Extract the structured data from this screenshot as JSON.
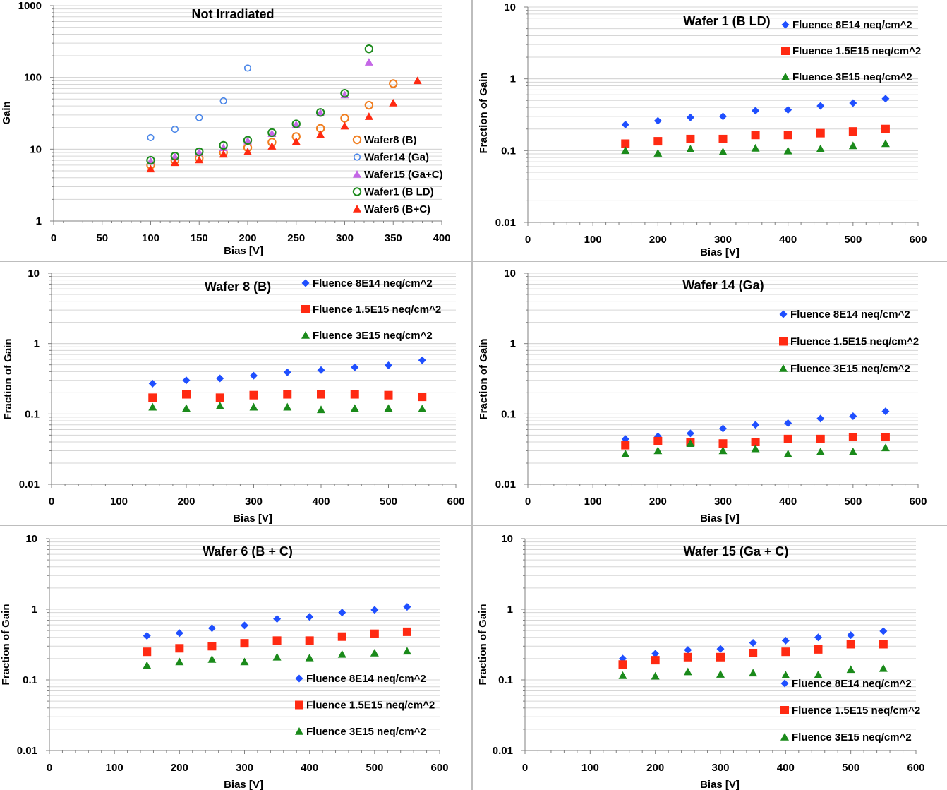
{
  "colors": {
    "fluence_8e14": "#1f4fff",
    "fluence_1_5e15": "#ff2a12",
    "fluence_3e15": "#1a8a1a",
    "wafer8": "#f07d1e",
    "wafer14": "#4a86e8",
    "wafer15": "#c467e6",
    "wafer1": "#1c8a1c",
    "wafer6": "#ff2a12"
  },
  "chart_data": [
    {
      "id": "not-irradiated",
      "type": "scatter",
      "title": "Not Irradiated",
      "xlabel": "Bias [V]",
      "ylabel": "Gain",
      "xlim": [
        0,
        400
      ],
      "ylim": [
        1,
        1000
      ],
      "yscale": "log",
      "xticks": [
        0,
        50,
        100,
        150,
        200,
        250,
        300,
        350,
        400
      ],
      "yticks": [
        1,
        10,
        100,
        1000
      ],
      "grid": true,
      "legend_position": "bottom-right",
      "series": [
        {
          "name": "Wafer8 (B)",
          "marker": "circle-open",
          "color": "#f07d1e",
          "x": [
            100,
            125,
            150,
            175,
            200,
            225,
            250,
            275,
            300,
            325,
            350
          ],
          "y": [
            6.0,
            7.0,
            7.5,
            9.0,
            10.5,
            12.5,
            15.0,
            19.5,
            27.0,
            41.0,
            82.0
          ]
        },
        {
          "name": "Wafer14 (Ga)",
          "marker": "circle-open-small",
          "color": "#4a86e8",
          "x": [
            100,
            125,
            150,
            175,
            200
          ],
          "y": [
            14.5,
            19.0,
            27.5,
            47.0,
            135.0
          ]
        },
        {
          "name": "Wafer15 (Ga+C)",
          "marker": "triangle",
          "color": "#c467e6",
          "x": [
            100,
            125,
            150,
            175,
            200,
            225,
            250,
            275,
            300,
            325
          ],
          "y": [
            6.8,
            7.8,
            9.0,
            10.5,
            13.0,
            16.5,
            22.0,
            32.0,
            57.0,
            163.0
          ]
        },
        {
          "name": "Wafer1 (B LD)",
          "marker": "circle-open",
          "color": "#1c8a1c",
          "x": [
            100,
            125,
            150,
            175,
            200,
            225,
            250,
            275,
            300,
            325
          ],
          "y": [
            7.0,
            8.0,
            9.2,
            11.3,
            13.3,
            17.0,
            22.5,
            32.5,
            60.0,
            250.0
          ]
        },
        {
          "name": "Wafer6 (B+C)",
          "marker": "triangle",
          "color": "#ff2a12",
          "x": [
            100,
            125,
            150,
            175,
            200,
            225,
            250,
            275,
            300,
            325,
            350,
            375
          ],
          "y": [
            5.3,
            6.5,
            7.1,
            8.5,
            9.2,
            11.0,
            12.8,
            16.0,
            21.0,
            28.5,
            44.0,
            90.0
          ]
        }
      ]
    },
    {
      "id": "wafer1",
      "type": "scatter",
      "title": "Wafer 1 (B LD)",
      "xlabel": "Bias [V]",
      "ylabel": "Fraction of Gain",
      "xlim": [
        0,
        600
      ],
      "ylim": [
        0.01,
        10
      ],
      "yscale": "log",
      "xticks": [
        0,
        100,
        200,
        300,
        400,
        500,
        600
      ],
      "yticks": [
        0.01,
        0.1,
        1,
        10
      ],
      "grid": true,
      "legend_position": "top-right",
      "series": [
        {
          "name": "Fluence 8E14 neq/cm^2",
          "marker": "diamond",
          "color": "#1f4fff",
          "x": [
            150,
            200,
            250,
            300,
            350,
            400,
            450,
            500,
            550
          ],
          "y": [
            0.23,
            0.26,
            0.29,
            0.3,
            0.36,
            0.37,
            0.42,
            0.46,
            0.53
          ]
        },
        {
          "name": "Fluence 1.5E15 neq/cm^2",
          "marker": "square",
          "color": "#ff2a12",
          "x": [
            150,
            200,
            250,
            300,
            350,
            400,
            450,
            500,
            550
          ],
          "y": [
            0.125,
            0.135,
            0.145,
            0.145,
            0.165,
            0.165,
            0.175,
            0.185,
            0.2
          ]
        },
        {
          "name": "Fluence 3E15 neq/cm^2",
          "marker": "triangle",
          "color": "#1a8a1a",
          "x": [
            150,
            200,
            250,
            300,
            350,
            400,
            450,
            500,
            550
          ],
          "y": [
            0.1,
            0.092,
            0.105,
            0.096,
            0.108,
            0.099,
            0.106,
            0.117,
            0.125
          ]
        }
      ]
    },
    {
      "id": "wafer8",
      "type": "scatter",
      "title": "Wafer 8 (B)",
      "xlabel": "Bias [V]",
      "ylabel": "Fraction of Gain",
      "xlim": [
        0,
        600
      ],
      "ylim": [
        0.01,
        10
      ],
      "yscale": "log",
      "xticks": [
        0,
        100,
        200,
        300,
        400,
        500,
        600
      ],
      "yticks": [
        0.01,
        0.1,
        1,
        10
      ],
      "grid": true,
      "legend_position": "top-right",
      "series": [
        {
          "name": "Fluence 8E14 neq/cm^2",
          "marker": "diamond",
          "color": "#1f4fff",
          "x": [
            150,
            200,
            250,
            300,
            350,
            400,
            450,
            500,
            550
          ],
          "y": [
            0.27,
            0.3,
            0.32,
            0.35,
            0.39,
            0.42,
            0.46,
            0.49,
            0.58
          ]
        },
        {
          "name": "Fluence 1.5E15 neq/cm^2",
          "marker": "square",
          "color": "#ff2a12",
          "x": [
            150,
            200,
            250,
            300,
            350,
            400,
            450,
            500,
            550
          ],
          "y": [
            0.17,
            0.19,
            0.17,
            0.185,
            0.19,
            0.19,
            0.19,
            0.185,
            0.175
          ]
        },
        {
          "name": "Fluence 3E15 neq/cm^2",
          "marker": "triangle",
          "color": "#1a8a1a",
          "x": [
            150,
            200,
            250,
            300,
            350,
            400,
            450,
            500,
            550
          ],
          "y": [
            0.125,
            0.12,
            0.13,
            0.125,
            0.125,
            0.115,
            0.12,
            0.12,
            0.118
          ]
        }
      ]
    },
    {
      "id": "wafer14",
      "type": "scatter",
      "title": "Wafer 14 (Ga)",
      "xlabel": "Bias [V]",
      "ylabel": "Fraction of Gain",
      "xlim": [
        0,
        600
      ],
      "ylim": [
        0.01,
        10
      ],
      "yscale": "log",
      "xticks": [
        0,
        100,
        200,
        300,
        400,
        500,
        600
      ],
      "yticks": [
        0.01,
        0.1,
        1,
        10
      ],
      "grid": true,
      "legend_position": "right",
      "series": [
        {
          "name": "Fluence 8E14 neq/cm^2",
          "marker": "diamond",
          "color": "#1f4fff",
          "x": [
            150,
            200,
            250,
            300,
            350,
            400,
            450,
            500,
            550
          ],
          "y": [
            0.044,
            0.048,
            0.053,
            0.062,
            0.07,
            0.074,
            0.086,
            0.093,
            0.109
          ]
        },
        {
          "name": "Fluence 1.5E15 neq/cm^2",
          "marker": "square",
          "color": "#ff2a12",
          "x": [
            150,
            200,
            250,
            300,
            350,
            400,
            450,
            500,
            550
          ],
          "y": [
            0.036,
            0.041,
            0.04,
            0.038,
            0.04,
            0.044,
            0.044,
            0.047,
            0.047
          ]
        },
        {
          "name": "Fluence 3E15 neq/cm^2",
          "marker": "triangle",
          "color": "#1a8a1a",
          "x": [
            150,
            200,
            250,
            300,
            350,
            400,
            450,
            500,
            550
          ],
          "y": [
            0.027,
            0.03,
            0.038,
            0.03,
            0.032,
            0.027,
            0.029,
            0.029,
            0.033
          ]
        }
      ]
    },
    {
      "id": "wafer6",
      "type": "scatter",
      "title": "Wafer 6 (B + C)",
      "xlabel": "Bias [V]",
      "ylabel": "Fraction of Gain",
      "xlim": [
        0,
        600
      ],
      "ylim": [
        0.01,
        10
      ],
      "yscale": "log",
      "xticks": [
        0,
        100,
        200,
        300,
        400,
        500,
        600
      ],
      "yticks": [
        0.01,
        0.1,
        1,
        10
      ],
      "grid": true,
      "legend_position": "bottom-right",
      "series": [
        {
          "name": "Fluence 8E14 neq/cm^2",
          "marker": "diamond",
          "color": "#1f4fff",
          "x": [
            150,
            200,
            250,
            300,
            350,
            400,
            450,
            500,
            550
          ],
          "y": [
            0.42,
            0.46,
            0.54,
            0.59,
            0.73,
            0.78,
            0.9,
            0.98,
            1.08
          ]
        },
        {
          "name": "Fluence 1.5E15 neq/cm^2",
          "marker": "square",
          "color": "#ff2a12",
          "x": [
            150,
            200,
            250,
            300,
            350,
            400,
            450,
            500,
            550
          ],
          "y": [
            0.25,
            0.28,
            0.3,
            0.33,
            0.36,
            0.36,
            0.41,
            0.45,
            0.48
          ]
        },
        {
          "name": "Fluence 3E15 neq/cm^2",
          "marker": "triangle",
          "color": "#1a8a1a",
          "x": [
            150,
            200,
            250,
            300,
            350,
            400,
            450,
            500,
            550
          ],
          "y": [
            0.16,
            0.18,
            0.195,
            0.18,
            0.21,
            0.205,
            0.23,
            0.24,
            0.255
          ]
        }
      ]
    },
    {
      "id": "wafer15",
      "type": "scatter",
      "title": "Wafer 15 (Ga + C)",
      "xlabel": "Bias [V]",
      "ylabel": "Fraction of Gain",
      "xlim": [
        0,
        600
      ],
      "ylim": [
        0.01,
        10
      ],
      "yscale": "log",
      "xticks": [
        0,
        100,
        200,
        300,
        400,
        500,
        600
      ],
      "yticks": [
        0.01,
        0.1,
        1,
        10
      ],
      "grid": true,
      "legend_position": "bottom-right",
      "series": [
        {
          "name": "Fluence 8E14 neq/cm^2",
          "marker": "diamond",
          "color": "#1f4fff",
          "x": [
            150,
            200,
            250,
            300,
            350,
            400,
            450,
            500,
            550
          ],
          "y": [
            0.2,
            0.235,
            0.265,
            0.275,
            0.335,
            0.36,
            0.4,
            0.43,
            0.49
          ]
        },
        {
          "name": "Fluence 1.5E15 neq/cm^2",
          "marker": "square",
          "color": "#ff2a12",
          "x": [
            150,
            200,
            250,
            300,
            350,
            400,
            450,
            500,
            550
          ],
          "y": [
            0.165,
            0.19,
            0.21,
            0.21,
            0.24,
            0.25,
            0.27,
            0.32,
            0.32
          ]
        },
        {
          "name": "Fluence 3E15 neq/cm^2",
          "marker": "triangle",
          "color": "#1a8a1a",
          "x": [
            150,
            200,
            250,
            300,
            350,
            400,
            450,
            500,
            550
          ],
          "y": [
            0.115,
            0.113,
            0.13,
            0.12,
            0.125,
            0.117,
            0.118,
            0.14,
            0.145
          ]
        }
      ]
    }
  ]
}
